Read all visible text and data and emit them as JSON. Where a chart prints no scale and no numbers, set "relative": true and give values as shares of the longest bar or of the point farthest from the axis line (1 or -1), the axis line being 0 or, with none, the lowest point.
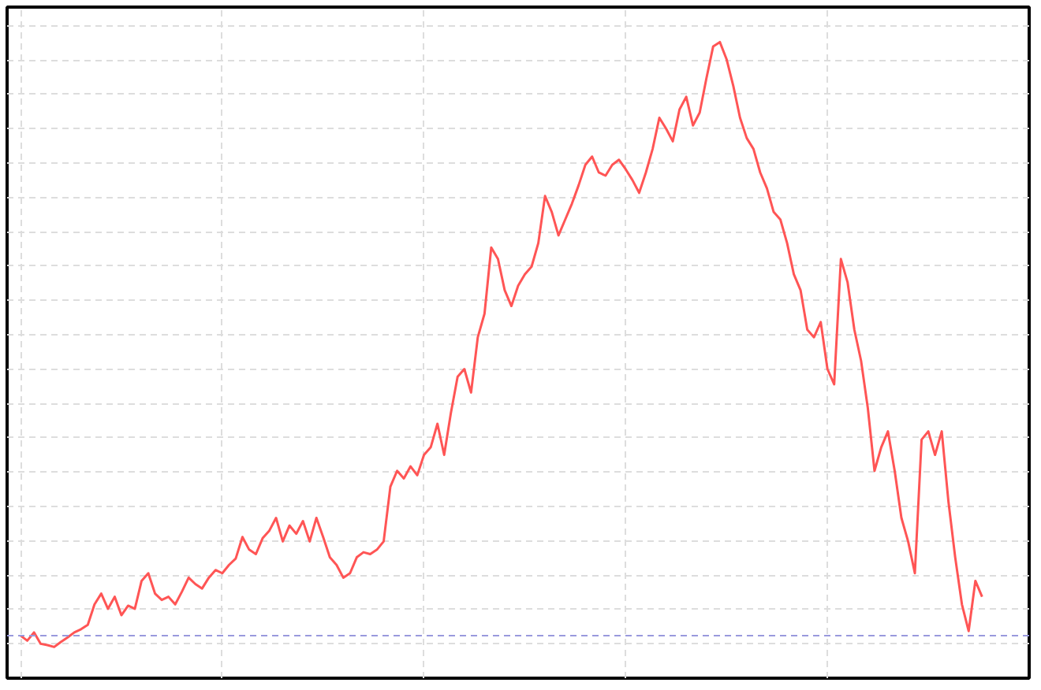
{
  "chart_data": {
    "type": "line",
    "relative": true,
    "grid": true,
    "line_style": "solid",
    "marker": "none",
    "categories": [
      null,
      null,
      null,
      null,
      null,
      null,
      null,
      null,
      null,
      null,
      null,
      null,
      null,
      null,
      null,
      null,
      null,
      null,
      null,
      null,
      null,
      null,
      null,
      null,
      null,
      null,
      null,
      null,
      null,
      null,
      null,
      null,
      null,
      null,
      null,
      null,
      null,
      null,
      null,
      null,
      null,
      null,
      null,
      null,
      null,
      null,
      null,
      null,
      null,
      null,
      null,
      null,
      null,
      null,
      null,
      null,
      null,
      null,
      null,
      null,
      null,
      null,
      null,
      null,
      null,
      null,
      null,
      null,
      null,
      null,
      null,
      null,
      null,
      null,
      null,
      null,
      null,
      null,
      null,
      null,
      null,
      null,
      null,
      null,
      null,
      null,
      null,
      null,
      null,
      null,
      null,
      null,
      null,
      null,
      null,
      null,
      null,
      null,
      null,
      null,
      null,
      null,
      null,
      null,
      null,
      null,
      null,
      null,
      null,
      null,
      null,
      null,
      null,
      null,
      null,
      null,
      null,
      null,
      null,
      null,
      null,
      null,
      null,
      null,
      null,
      null,
      null,
      null,
      null,
      null,
      null,
      null,
      null,
      null,
      null,
      null,
      null,
      null,
      null,
      null,
      null,
      null,
      null,
      null
    ],
    "series": [
      {
        "color": "#ff5555",
        "values": [
          0.067,
          0.059,
          0.072,
          0.054,
          0.052,
          0.049,
          0.057,
          0.064,
          0.072,
          0.077,
          0.084,
          0.116,
          0.133,
          0.109,
          0.128,
          0.099,
          0.114,
          0.109,
          0.153,
          0.165,
          0.133,
          0.123,
          0.128,
          0.116,
          0.136,
          0.158,
          0.148,
          0.141,
          0.158,
          0.17,
          0.165,
          0.178,
          0.188,
          0.222,
          0.202,
          0.195,
          0.22,
          0.232,
          0.252,
          0.215,
          0.24,
          0.227,
          0.247,
          0.215,
          0.252,
          0.222,
          0.19,
          0.178,
          0.158,
          0.165,
          0.19,
          0.198,
          0.195,
          0.202,
          0.215,
          0.301,
          0.326,
          0.314,
          0.333,
          0.319,
          0.351,
          0.363,
          0.4,
          0.351,
          0.417,
          0.474,
          0.486,
          0.449,
          0.536,
          0.573,
          0.677,
          0.659,
          0.61,
          0.585,
          0.617,
          0.635,
          0.647,
          0.684,
          0.758,
          0.733,
          0.696,
          0.721,
          0.746,
          0.775,
          0.807,
          0.82,
          0.795,
          0.79,
          0.807,
          0.815,
          0.8,
          0.783,
          0.763,
          0.795,
          0.832,
          0.881,
          0.864,
          0.844,
          0.894,
          0.914,
          0.869,
          0.889,
          0.943,
          0.993,
          1,
          0.973,
          0.931,
          0.881,
          0.849,
          0.832,
          0.795,
          0.77,
          0.733,
          0.721,
          0.684,
          0.635,
          0.61,
          0.548,
          0.536,
          0.56,
          0.486,
          0.462,
          0.659,
          0.622,
          0.548,
          0.499,
          0.425,
          0.326,
          0.363,
          0.388,
          0.326,
          0.252,
          0.215,
          0.165,
          0.375,
          0.388,
          0.351,
          0.388,
          0.277,
          0.19,
          0.116,
          0.074,
          0.153,
          0.128
        ]
      }
    ],
    "ref_lines": [
      {
        "axis": "y",
        "value": 0.067,
        "color": "#9999dd",
        "line_style": "dashed"
      }
    ]
  }
}
